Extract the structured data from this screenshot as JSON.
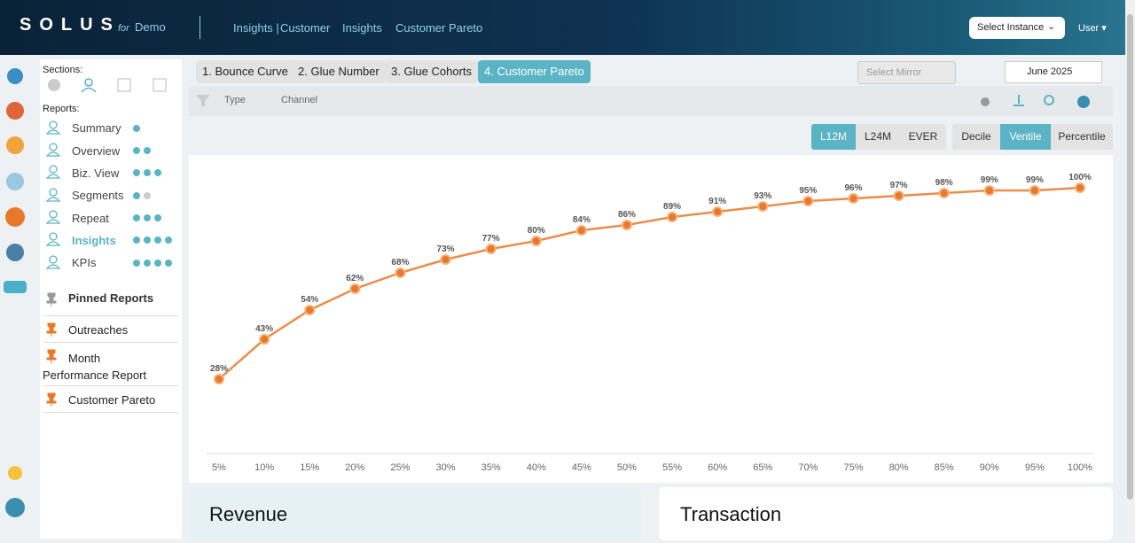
{
  "header": {
    "brand": "SOLUS",
    "for": "for",
    "demo": "Demo",
    "breadcrumb": [
      "Insights |",
      "Customer",
      "Insights",
      "Customer Pareto"
    ],
    "select_instance": "Select Instance",
    "user": "User"
  },
  "sidebar": {
    "sections_label": "Sections:",
    "reports_label": "Reports:",
    "reports": [
      "Summary",
      "Overview",
      "Biz. View",
      "Segments",
      "Repeat",
      "Insights",
      "KPIs"
    ],
    "pinned_label": "Pinned Reports",
    "pinned": [
      "Outreaches",
      "Month Performance Report",
      "Customer Pareto"
    ]
  },
  "tabs": [
    "1. Bounce Curve",
    "2. Glue Number",
    "3. Glue Cohorts",
    "4. Customer Pareto"
  ],
  "mirror": "Select Mirror",
  "month": "June 2025",
  "filters": [
    "Type",
    "Channel"
  ],
  "period": [
    "L12M",
    "L24M",
    "EVER"
  ],
  "granularity": [
    "Decile",
    "Ventile",
    "Percentile"
  ],
  "cards": [
    "Revenue",
    "Transaction"
  ],
  "chart_data": {
    "type": "line",
    "color": "#e8792a",
    "categories": [
      "5%",
      "10%",
      "15%",
      "20%",
      "25%",
      "30%",
      "35%",
      "40%",
      "45%",
      "50%",
      "55%",
      "60%",
      "65%",
      "70%",
      "75%",
      "80%",
      "85%",
      "90%",
      "95%",
      "100%"
    ],
    "values": [
      28,
      43,
      54,
      62,
      68,
      73,
      77,
      80,
      84,
      86,
      89,
      91,
      93,
      95,
      96,
      97,
      98,
      99,
      99,
      100
    ],
    "value_labels": [
      "28%",
      "43%",
      "54%",
      "62%",
      "68%",
      "73%",
      "77%",
      "80%",
      "84%",
      "86%",
      "89%",
      "91%",
      "93%",
      "95%",
      "96%",
      "97%",
      "98%",
      "99%",
      "99%",
      "100%"
    ],
    "ylim": [
      0,
      100
    ]
  }
}
